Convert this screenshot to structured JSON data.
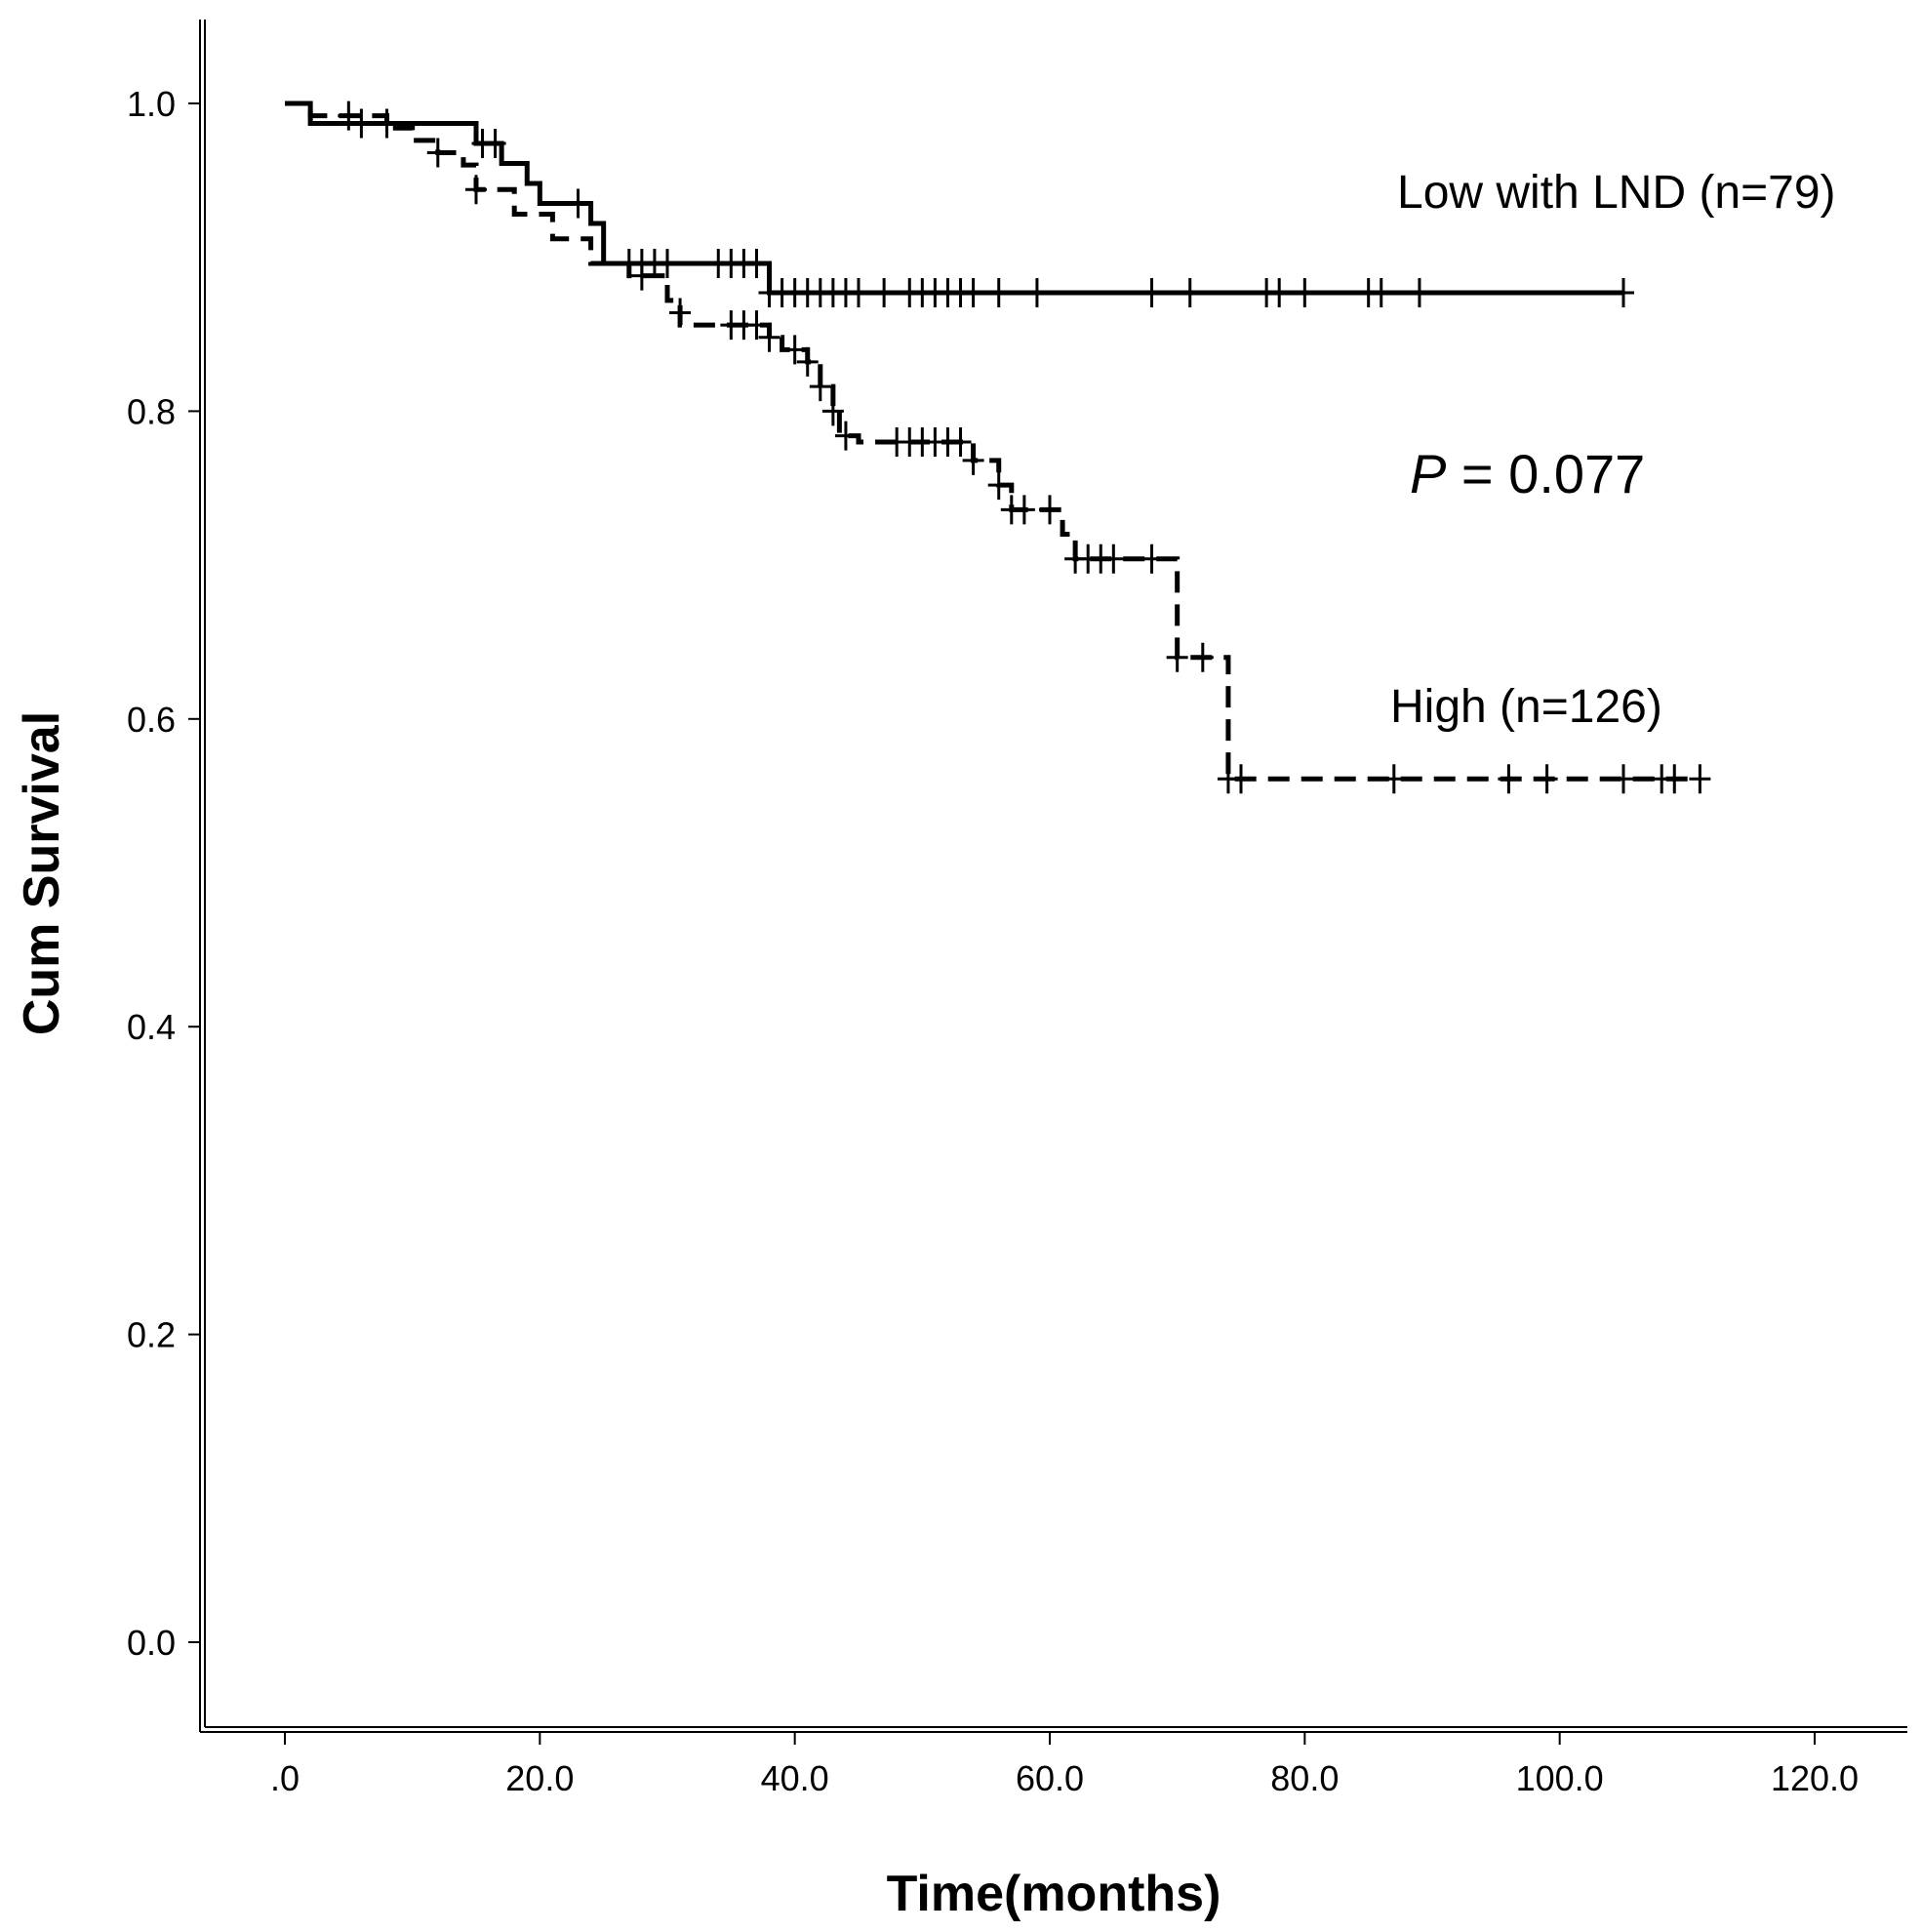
{
  "chart_data": {
    "type": "line",
    "subtype": "kaplan-meier",
    "title": "",
    "xlabel": "Time(months)",
    "ylabel": "Cum Survival",
    "xlim": [
      -7,
      127
    ],
    "ylim": [
      -0.055,
      1.05
    ],
    "x_ticks": [
      0,
      20,
      40,
      60,
      80,
      100,
      120
    ],
    "x_tick_labels": [
      ".0",
      "20.0",
      "40.0",
      "60.0",
      "80.0",
      "100.0",
      "120.0"
    ],
    "y_ticks": [
      0,
      0.2,
      0.4,
      0.6,
      0.8,
      1.0
    ],
    "y_tick_labels": [
      "0.0",
      "0.2",
      "0.4",
      "0.6",
      "0.8",
      "1.0"
    ],
    "grid": false,
    "series": [
      {
        "name": "Low with LND (n=79)",
        "line_style": "solid",
        "steps": [
          [
            0,
            1.0
          ],
          [
            2,
            0.987
          ],
          [
            15,
            0.974
          ],
          [
            17,
            0.961
          ],
          [
            19,
            0.948
          ],
          [
            20,
            0.935
          ],
          [
            24,
            0.922
          ],
          [
            25,
            0.896
          ],
          [
            38,
            0.877
          ],
          [
            105,
            0.877
          ]
        ],
        "censored": [
          [
            6,
            0.987
          ],
          [
            8,
            0.987
          ],
          [
            15.5,
            0.974
          ],
          [
            16.5,
            0.974
          ],
          [
            23,
            0.935
          ],
          [
            27,
            0.896
          ],
          [
            28,
            0.896
          ],
          [
            29,
            0.896
          ],
          [
            30,
            0.896
          ],
          [
            34,
            0.896
          ],
          [
            35,
            0.896
          ],
          [
            36,
            0.896
          ],
          [
            37,
            0.896
          ],
          [
            38,
            0.877
          ],
          [
            39,
            0.877
          ],
          [
            40,
            0.877
          ],
          [
            41,
            0.877
          ],
          [
            42,
            0.877
          ],
          [
            43,
            0.877
          ],
          [
            44,
            0.877
          ],
          [
            45,
            0.877
          ],
          [
            47,
            0.877
          ],
          [
            49,
            0.877
          ],
          [
            50,
            0.877
          ],
          [
            51,
            0.877
          ],
          [
            52,
            0.877
          ],
          [
            53,
            0.877
          ],
          [
            54,
            0.877
          ],
          [
            56,
            0.877
          ],
          [
            59,
            0.877
          ],
          [
            68,
            0.877
          ],
          [
            71,
            0.877
          ],
          [
            77,
            0.877
          ],
          [
            78,
            0.877
          ],
          [
            80,
            0.877
          ],
          [
            85,
            0.877
          ],
          [
            86,
            0.877
          ],
          [
            89,
            0.877
          ],
          [
            105,
            0.877
          ]
        ]
      },
      {
        "name": "High (n=126)",
        "line_style": "dashed",
        "steps": [
          [
            0,
            1.0
          ],
          [
            2,
            0.992
          ],
          [
            8,
            0.984
          ],
          [
            10,
            0.976
          ],
          [
            12,
            0.968
          ],
          [
            14,
            0.96
          ],
          [
            15,
            0.944
          ],
          [
            18,
            0.928
          ],
          [
            21,
            0.912
          ],
          [
            24,
            0.896
          ],
          [
            27,
            0.888
          ],
          [
            30,
            0.872
          ],
          [
            31,
            0.856
          ],
          [
            38,
            0.848
          ],
          [
            39,
            0.84
          ],
          [
            41,
            0.832
          ],
          [
            42,
            0.816
          ],
          [
            43,
            0.8
          ],
          [
            43.5,
            0.784
          ],
          [
            45,
            0.78
          ],
          [
            54,
            0.768
          ],
          [
            56,
            0.752
          ],
          [
            57,
            0.736
          ],
          [
            61,
            0.72
          ],
          [
            62,
            0.704
          ],
          [
            70,
            0.64
          ],
          [
            74,
            0.561
          ],
          [
            111,
            0.561
          ]
        ],
        "censored": [
          [
            5,
            0.992
          ],
          [
            12,
            0.968
          ],
          [
            15,
            0.944
          ],
          [
            28,
            0.888
          ],
          [
            31,
            0.864
          ],
          [
            35,
            0.856
          ],
          [
            36,
            0.856
          ],
          [
            37,
            0.856
          ],
          [
            38,
            0.848
          ],
          [
            40,
            0.84
          ],
          [
            41,
            0.832
          ],
          [
            42,
            0.816
          ],
          [
            43,
            0.8
          ],
          [
            44,
            0.784
          ],
          [
            48,
            0.78
          ],
          [
            49,
            0.78
          ],
          [
            50,
            0.78
          ],
          [
            51,
            0.78
          ],
          [
            52,
            0.78
          ],
          [
            53,
            0.78
          ],
          [
            54,
            0.768
          ],
          [
            56,
            0.752
          ],
          [
            57,
            0.736
          ],
          [
            58,
            0.736
          ],
          [
            60,
            0.736
          ],
          [
            62,
            0.704
          ],
          [
            63,
            0.704
          ],
          [
            64,
            0.704
          ],
          [
            65,
            0.704
          ],
          [
            68,
            0.704
          ],
          [
            70,
            0.64
          ],
          [
            72,
            0.64
          ],
          [
            74,
            0.561
          ],
          [
            75,
            0.561
          ],
          [
            87,
            0.561
          ],
          [
            96,
            0.561
          ],
          [
            99,
            0.561
          ],
          [
            105,
            0.561
          ],
          [
            108,
            0.561
          ],
          [
            109,
            0.561
          ],
          [
            111,
            0.561
          ]
        ]
      }
    ],
    "annotations": {
      "low_label": "Low with LND (n=79)",
      "high_label": "High (n=126)",
      "p_prefix": "P",
      "p_suffix": " = 0.077"
    }
  }
}
